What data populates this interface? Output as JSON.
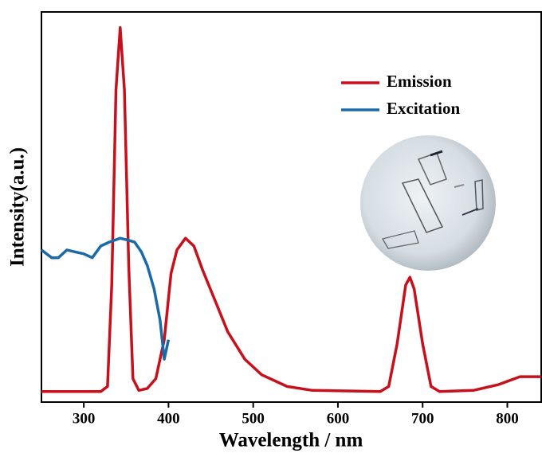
{
  "chart_data": {
    "type": "line",
    "xlabel": "Wavelength / nm",
    "ylabel": "Intensity(a.u.)",
    "xlim": [
      250,
      840
    ],
    "ylim": [
      0,
      1
    ],
    "xticks": [
      300,
      400,
      500,
      600,
      700,
      800
    ],
    "legend": "upper right",
    "series": [
      {
        "name": "Emission",
        "color": "#c8101c",
        "x": [
          250,
          320,
          328,
          333,
          338,
          343,
          348,
          353,
          358,
          365,
          375,
          385,
          395,
          403,
          410,
          420,
          430,
          440,
          455,
          470,
          490,
          510,
          540,
          570,
          650,
          660,
          670,
          680,
          685,
          690,
          700,
          710,
          720,
          760,
          790,
          815,
          840
        ],
        "values": [
          0.027,
          0.027,
          0.04,
          0.3,
          0.8,
          0.96,
          0.8,
          0.35,
          0.06,
          0.03,
          0.035,
          0.06,
          0.16,
          0.33,
          0.39,
          0.42,
          0.4,
          0.34,
          0.26,
          0.18,
          0.11,
          0.07,
          0.04,
          0.03,
          0.027,
          0.04,
          0.15,
          0.3,
          0.32,
          0.29,
          0.15,
          0.04,
          0.027,
          0.03,
          0.045,
          0.065,
          0.065
        ]
      },
      {
        "name": "Excitation",
        "color": "#1a6aa8",
        "x": [
          250,
          262,
          270,
          280,
          290,
          300,
          310,
          320,
          330,
          343,
          352,
          360,
          368,
          375,
          383,
          390,
          395,
          400
        ],
        "values": [
          0.39,
          0.37,
          0.37,
          0.39,
          0.385,
          0.38,
          0.37,
          0.4,
          0.41,
          0.42,
          0.415,
          0.41,
          0.385,
          0.35,
          0.29,
          0.21,
          0.11,
          0.16
        ]
      }
    ]
  }
}
